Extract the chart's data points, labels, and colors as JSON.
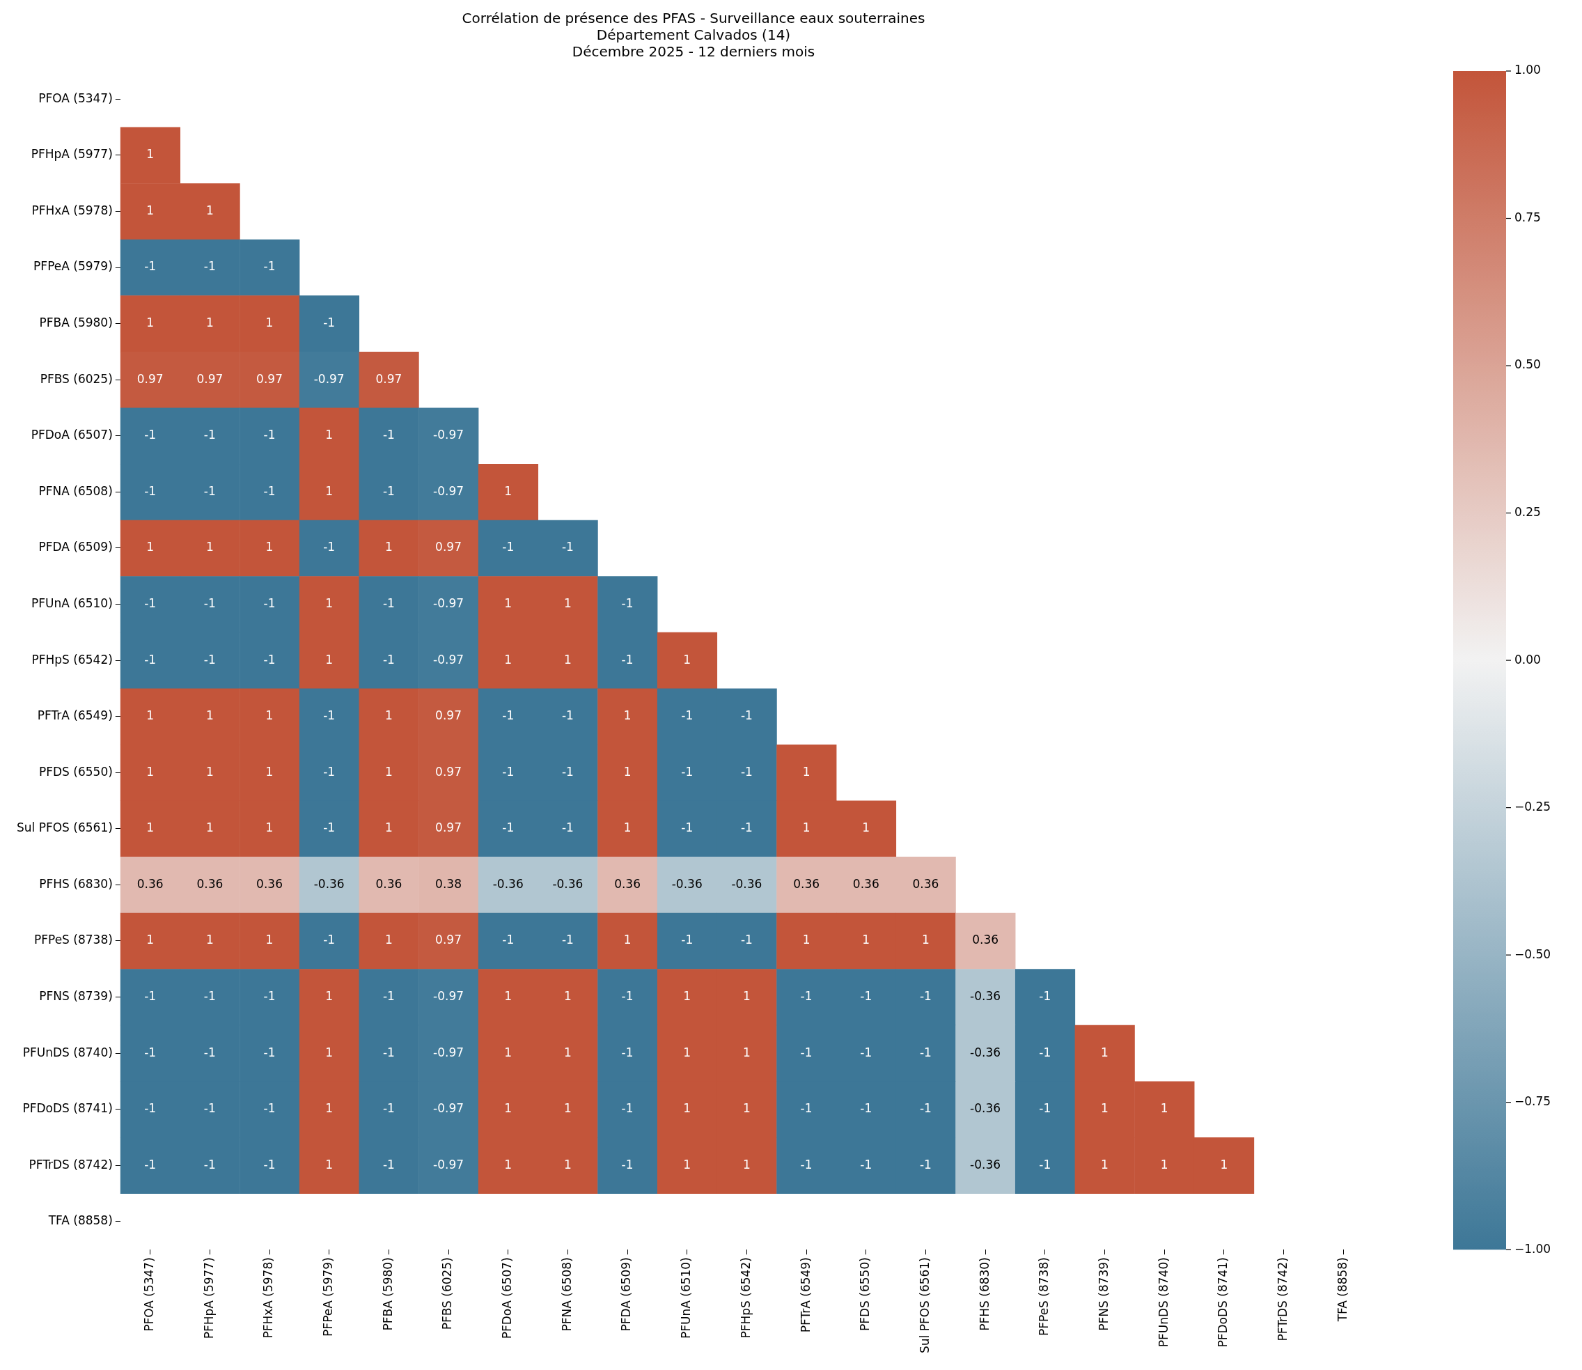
{
  "chart_data": {
    "type": "heatmap",
    "title": "Corrélation de présence des PFAS - Surveillance eaux souterraines\nDépartement Calvados (14)\nDécembre 2025 - 12 derniers mois",
    "categories": [
      "PFOA (5347)",
      "PFHpA (5977)",
      "PFHxA (5978)",
      "PFPeA (5979)",
      "PFBA (5980)",
      "PFBS (6025)",
      "PFDoA (6507)",
      "PFNA (6508)",
      "PFDA (6509)",
      "PFUnA (6510)",
      "PFHpS (6542)",
      "PFTrA (6549)",
      "PFDS (6550)",
      "Sul PFOS (6561)",
      "PFHS (6830)",
      "PFPeS (8738)",
      "PFNS (8739)",
      "PFUnDS (8740)",
      "PFDoDS (8741)",
      "PFTrDS (8742)",
      "TFA (8858)"
    ],
    "y_categories": [
      "PFOA (5347)",
      "PFHpA (5977)",
      "PFHxA (5978)",
      "PFPeA (5979)",
      "PFBA (5980)",
      "PFBS (6025)",
      "PFDoA (6507)",
      "PFNA (6508)",
      "PFDA (6509)",
      "PFUnA (6510)",
      "PFHpS (6542)",
      "PFTrA (6549)",
      "PFDS (6550)",
      "Sul PFOS (6561)",
      "PFHS (6830)",
      "PFPeS (8738)",
      "PFNS (8739)",
      "PFUnDS (8740)",
      "PFDoDS (8741)",
      "PFTrDS (8742)",
      "TFA (8858)"
    ],
    "cells": [
      [
        null,
        null,
        null,
        null,
        null,
        null,
        null,
        null,
        null,
        null,
        null,
        null,
        null,
        null,
        null,
        null,
        null,
        null,
        null,
        null,
        null
      ],
      [
        1,
        null,
        null,
        null,
        null,
        null,
        null,
        null,
        null,
        null,
        null,
        null,
        null,
        null,
        null,
        null,
        null,
        null,
        null,
        null,
        null
      ],
      [
        1,
        1,
        null,
        null,
        null,
        null,
        null,
        null,
        null,
        null,
        null,
        null,
        null,
        null,
        null,
        null,
        null,
        null,
        null,
        null,
        null
      ],
      [
        -1,
        -1,
        -1,
        null,
        null,
        null,
        null,
        null,
        null,
        null,
        null,
        null,
        null,
        null,
        null,
        null,
        null,
        null,
        null,
        null,
        null
      ],
      [
        1,
        1,
        1,
        -1,
        null,
        null,
        null,
        null,
        null,
        null,
        null,
        null,
        null,
        null,
        null,
        null,
        null,
        null,
        null,
        null,
        null
      ],
      [
        0.97,
        0.97,
        0.97,
        -0.97,
        0.97,
        null,
        null,
        null,
        null,
        null,
        null,
        null,
        null,
        null,
        null,
        null,
        null,
        null,
        null,
        null,
        null
      ],
      [
        -1,
        -1,
        -1,
        1,
        -1,
        -0.97,
        null,
        null,
        null,
        null,
        null,
        null,
        null,
        null,
        null,
        null,
        null,
        null,
        null,
        null,
        null
      ],
      [
        -1,
        -1,
        -1,
        1,
        -1,
        -0.97,
        1,
        null,
        null,
        null,
        null,
        null,
        null,
        null,
        null,
        null,
        null,
        null,
        null,
        null,
        null
      ],
      [
        1,
        1,
        1,
        -1,
        1,
        0.97,
        -1,
        -1,
        null,
        null,
        null,
        null,
        null,
        null,
        null,
        null,
        null,
        null,
        null,
        null,
        null
      ],
      [
        -1,
        -1,
        -1,
        1,
        -1,
        -0.97,
        1,
        1,
        -1,
        null,
        null,
        null,
        null,
        null,
        null,
        null,
        null,
        null,
        null,
        null,
        null
      ],
      [
        -1,
        -1,
        -1,
        1,
        -1,
        -0.97,
        1,
        1,
        -1,
        1,
        null,
        null,
        null,
        null,
        null,
        null,
        null,
        null,
        null,
        null,
        null
      ],
      [
        1,
        1,
        1,
        -1,
        1,
        0.97,
        -1,
        -1,
        1,
        -1,
        -1,
        null,
        null,
        null,
        null,
        null,
        null,
        null,
        null,
        null,
        null
      ],
      [
        1,
        1,
        1,
        -1,
        1,
        0.97,
        -1,
        -1,
        1,
        -1,
        -1,
        1,
        null,
        null,
        null,
        null,
        null,
        null,
        null,
        null,
        null
      ],
      [
        1,
        1,
        1,
        -1,
        1,
        0.97,
        -1,
        -1,
        1,
        -1,
        -1,
        1,
        1,
        null,
        null,
        null,
        null,
        null,
        null,
        null,
        null
      ],
      [
        0.36,
        0.36,
        0.36,
        -0.36,
        0.36,
        0.38,
        -0.36,
        -0.36,
        0.36,
        -0.36,
        -0.36,
        0.36,
        0.36,
        0.36,
        null,
        null,
        null,
        null,
        null,
        null,
        null
      ],
      [
        1,
        1,
        1,
        -1,
        1,
        0.97,
        -1,
        -1,
        1,
        -1,
        -1,
        1,
        1,
        1,
        0.36,
        null,
        null,
        null,
        null,
        null,
        null
      ],
      [
        -1,
        -1,
        -1,
        1,
        -1,
        -0.97,
        1,
        1,
        -1,
        1,
        1,
        -1,
        -1,
        -1,
        -0.36,
        -1,
        null,
        null,
        null,
        null,
        null
      ],
      [
        -1,
        -1,
        -1,
        1,
        -1,
        -0.97,
        1,
        1,
        -1,
        1,
        1,
        -1,
        -1,
        -1,
        -0.36,
        -1,
        1,
        null,
        null,
        null,
        null
      ],
      [
        -1,
        -1,
        -1,
        1,
        -1,
        -0.97,
        1,
        1,
        -1,
        1,
        1,
        -1,
        -1,
        -1,
        -0.36,
        -1,
        1,
        1,
        null,
        null,
        null
      ],
      [
        -1,
        -1,
        -1,
        1,
        -1,
        -0.97,
        1,
        1,
        -1,
        1,
        1,
        -1,
        -1,
        -1,
        -0.36,
        -1,
        1,
        1,
        1,
        null,
        null
      ],
      [
        null,
        null,
        null,
        null,
        null,
        null,
        null,
        null,
        null,
        null,
        null,
        null,
        null,
        null,
        null,
        null,
        null,
        null,
        null,
        null,
        null
      ]
    ],
    "colors": [
      "#3d7797",
      "#f2f2f2",
      "#c3553a"
    ],
    "clim": [
      -1,
      1
    ],
    "cticks": [
      {
        "value": -1,
        "label": "−1.00"
      },
      {
        "value": -0.75,
        "label": "−0.75"
      },
      {
        "value": -0.5,
        "label": "−0.50"
      },
      {
        "value": -0.25,
        "label": "−0.25"
      },
      {
        "value": 0,
        "label": "0.00"
      },
      {
        "value": 0.25,
        "label": "0.25"
      },
      {
        "value": 0.5,
        "label": "0.50"
      },
      {
        "value": 0.75,
        "label": "0.75"
      },
      {
        "value": 1,
        "label": "1.00"
      }
    ],
    "data_labels": true
  }
}
